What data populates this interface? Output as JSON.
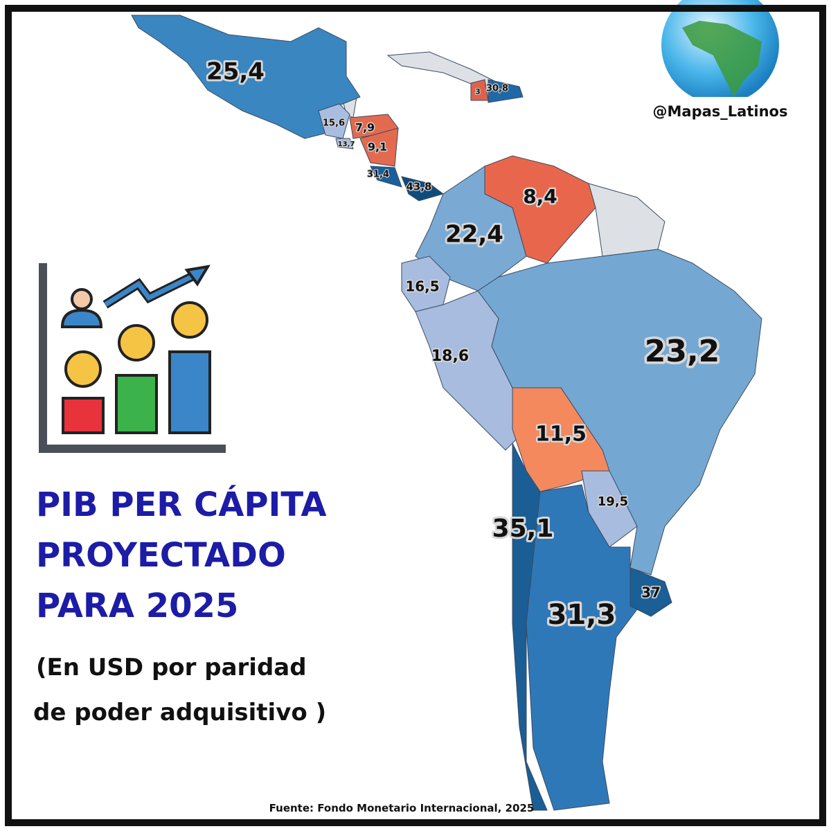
{
  "header": {
    "title_lines": [
      "PIB PER CÁPITA",
      "PROYECTADO",
      "PARA 2025"
    ],
    "subtitle_lines": [
      "(En USD por paridad",
      "de poder adquisitivo )"
    ]
  },
  "handle": "@Mapas_Latinos",
  "source": "Fuente: Fondo Monetario Internacional, 2025",
  "regions": [
    {
      "label": "25,4",
      "color": "#3a86c1"
    },
    {
      "label": "3",
      "color": "#e0614a"
    },
    {
      "label": "30,8",
      "color": "#1f69a8"
    },
    {
      "label": "15,6",
      "color": "#a9bde0"
    },
    {
      "label": "7,9",
      "color": "#e36a4f"
    },
    {
      "label": "13,7",
      "color": "#a9bde0"
    },
    {
      "label": "9,1",
      "color": "#e36a4f"
    },
    {
      "label": "31,4",
      "color": "#1a5f9a"
    },
    {
      "label": "43,8",
      "color": "#0f4c7e"
    },
    {
      "label": "8,4",
      "color": "#e8674c"
    },
    {
      "label": "22,4",
      "color": "#7aaad4"
    },
    {
      "label": "16,5",
      "color": "#a8bcdf"
    },
    {
      "label": "18,6",
      "color": "#a8bcdf"
    },
    {
      "label": "23,2",
      "color": "#74a8d3"
    },
    {
      "label": "11,5",
      "color": "#f4895e"
    },
    {
      "label": "19,5",
      "color": "#a8bcdf"
    },
    {
      "label": "35,1",
      "color": "#1b5e95"
    },
    {
      "label": "31,3",
      "color": "#2f78b8"
    },
    {
      "label": "37",
      "color": "#1a5f95"
    }
  ]
}
